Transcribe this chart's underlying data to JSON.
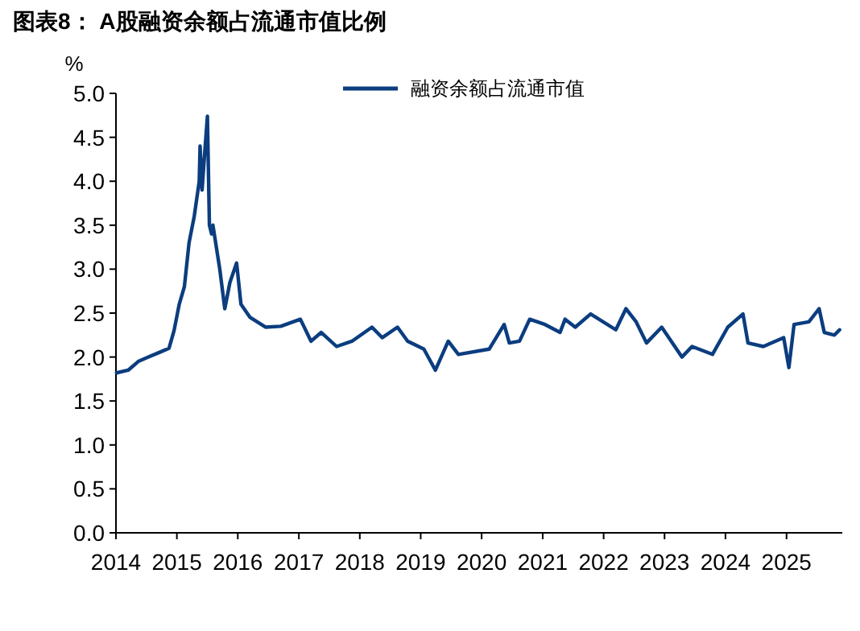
{
  "chart_data": {
    "type": "line",
    "title": "图表8： A股融资余额占流通市值比例",
    "ylabel": "%",
    "legend": "top",
    "grid": false,
    "xlim": [
      "2014-01-01",
      "2025-12-01"
    ],
    "xticks": [
      {
        "value": "2014-01-01",
        "label": "2014"
      },
      {
        "value": "2015-01-01",
        "label": "2015"
      },
      {
        "value": "2016-01-01",
        "label": "2016"
      },
      {
        "value": "2017-01-01",
        "label": "2017"
      },
      {
        "value": "2018-01-01",
        "label": "2018"
      },
      {
        "value": "2019-01-01",
        "label": "2019"
      },
      {
        "value": "2020-01-01",
        "label": "2020"
      },
      {
        "value": "2021-01-01",
        "label": "2021"
      },
      {
        "value": "2022-01-01",
        "label": "2022"
      },
      {
        "value": "2023-01-01",
        "label": "2023"
      },
      {
        "value": "2024-01-01",
        "label": "2024"
      },
      {
        "value": "2025-01-01",
        "label": "2025"
      }
    ],
    "ylim": [
      0,
      5
    ],
    "yticks": [
      {
        "value": 0,
        "label": "0.0"
      },
      {
        "value": 0.5,
        "label": "0.5"
      },
      {
        "value": 1,
        "label": "1.0"
      },
      {
        "value": 1.5,
        "label": "1.5"
      },
      {
        "value": 2,
        "label": "2.0"
      },
      {
        "value": 2.5,
        "label": "2.5"
      },
      {
        "value": 3,
        "label": "3.0"
      },
      {
        "value": 3.5,
        "label": "3.5"
      },
      {
        "value": 4,
        "label": "4.0"
      },
      {
        "value": 4.5,
        "label": "4.5"
      },
      {
        "value": 5,
        "label": "5.0"
      }
    ],
    "marker": "none",
    "line_style": "solid",
    "x": [
      "2014-01-05",
      "2014-03",
      "2014-05",
      "2014-07",
      "2014-09",
      "2014-11",
      "2014-12",
      "2015-01",
      "2015-02",
      "2015-03",
      "2015-04",
      "2015-05",
      "2015-05-20",
      "2015-06-01",
      "2015-06-12",
      "2015-07-03",
      "2015-07-15",
      "2015-07-28",
      "2015-08-05",
      "2015-09",
      "2015-10-15",
      "2015-11",
      "2015-12-25",
      "2016-01-20",
      "2016-03",
      "2016-06",
      "2016-09",
      "2017-01-10",
      "2017-03",
      "2017-05",
      "2017-08",
      "2017-11",
      "2018-03",
      "2018-05",
      "2018-08",
      "2018-10",
      "2019-01-20",
      "2019-03-30",
      "2019-06",
      "2019-08",
      "2020-02",
      "2020-05",
      "2020-06",
      "2020-08",
      "2020-10",
      "2021-01",
      "2021-04",
      "2021-05",
      "2021-07",
      "2021-10",
      "2022-03",
      "2022-05",
      "2022-07",
      "2022-09",
      "2022-12",
      "2023-04",
      "2023-06",
      "2023-10",
      "2024-01",
      "2024-04",
      "2024-05",
      "2024-08",
      "2024-12",
      "2025-01",
      "2025-02",
      "2025-05",
      "2025-07",
      "2025-08",
      "2025-10",
      "2025-11"
    ],
    "series": [
      {
        "name": "融资余额占流通市值",
        "color": "#0b3d7f",
        "values": [
          1.82,
          1.85,
          1.95,
          2.0,
          2.05,
          2.1,
          2.3,
          2.6,
          2.8,
          3.3,
          3.6,
          4.0,
          4.4,
          3.9,
          4.2,
          4.74,
          3.5,
          3.4,
          3.5,
          3.0,
          2.55,
          2.85,
          3.07,
          2.6,
          2.45,
          2.34,
          2.35,
          2.43,
          2.18,
          2.28,
          2.12,
          2.18,
          2.34,
          2.22,
          2.34,
          2.18,
          2.09,
          1.85,
          2.18,
          2.03,
          2.09,
          2.37,
          2.16,
          2.18,
          2.43,
          2.37,
          2.28,
          2.43,
          2.34,
          2.49,
          2.31,
          2.55,
          2.4,
          2.16,
          2.34,
          2.0,
          2.12,
          2.03,
          2.34,
          2.49,
          2.16,
          2.12,
          2.22,
          1.88,
          2.37,
          2.4,
          2.55,
          2.28,
          2.25,
          2.31
        ]
      }
    ]
  }
}
